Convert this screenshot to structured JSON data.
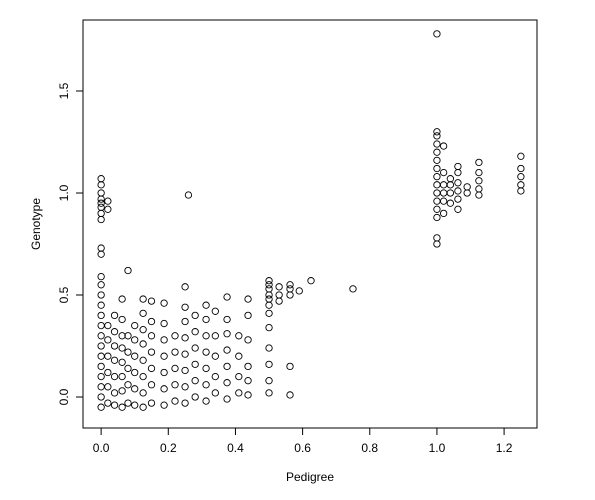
{
  "chart_data": {
    "type": "scatter",
    "x_label": "Pedigree",
    "y_label": "Genotype",
    "xlim": [
      -0.054,
      1.298
    ],
    "ylim": [
      -0.152,
      1.848
    ],
    "xticks": [
      {
        "value": 0,
        "label": "0.0"
      },
      {
        "value": 0.2,
        "label": "0.2"
      },
      {
        "value": 0.4,
        "label": "0.4"
      },
      {
        "value": 0.6,
        "label": "0.6"
      },
      {
        "value": 0.8,
        "label": "0.8"
      },
      {
        "value": 1,
        "label": "1.0"
      },
      {
        "value": 1.2,
        "label": "1.2"
      }
    ],
    "yticks": [
      {
        "value": 0,
        "label": "0.0"
      },
      {
        "value": 0.5,
        "label": "0.5"
      },
      {
        "value": 1,
        "label": "1.0"
      },
      {
        "value": 1.5,
        "label": "1.5"
      }
    ],
    "color": "#000000",
    "x": [
      0,
      0,
      0,
      0,
      0,
      0,
      0,
      0,
      0,
      0,
      0,
      0,
      0,
      0,
      0,
      0,
      0,
      0,
      0,
      0,
      0,
      0,
      0,
      0,
      0.02,
      0.02,
      0.02,
      0.02,
      0.02,
      0.02,
      0.02,
      0.02,
      0.04,
      0.04,
      0.04,
      0.04,
      0.04,
      0.04,
      0.04,
      0.0625,
      0.0625,
      0.0625,
      0.0625,
      0.0625,
      0.0625,
      0.0625,
      0.0625,
      0.08,
      0.08,
      0.08,
      0.08,
      0.08,
      0.08,
      0.1,
      0.1,
      0.1,
      0.1,
      0.1,
      0.1,
      0.125,
      0.125,
      0.125,
      0.125,
      0.125,
      0.125,
      0.125,
      0.125,
      0.15,
      0.15,
      0.15,
      0.15,
      0.15,
      0.15,
      0.15,
      0.1875,
      0.1875,
      0.1875,
      0.1875,
      0.1875,
      0.1875,
      0.1875,
      0.22,
      0.22,
      0.22,
      0.22,
      0.22,
      0.25,
      0.25,
      0.25,
      0.25,
      0.25,
      0.25,
      0.25,
      0.25,
      0.26,
      0.28,
      0.28,
      0.28,
      0.28,
      0.28,
      0.28,
      0.3125,
      0.3125,
      0.3125,
      0.3125,
      0.3125,
      0.3125,
      0.3125,
      0.34,
      0.34,
      0.34,
      0.34,
      0.34,
      0.375,
      0.375,
      0.375,
      0.375,
      0.375,
      0.375,
      0.375,
      0.41,
      0.41,
      0.41,
      0.41,
      0.4375,
      0.4375,
      0.4375,
      0.4375,
      0.4375,
      0.4375,
      0.5,
      0.5,
      0.5,
      0.5,
      0.5,
      0.5,
      0.5,
      0.5,
      0.5,
      0.5,
      0.5,
      0.5,
      0.53,
      0.53,
      0.53,
      0.5625,
      0.5625,
      0.5625,
      0.5625,
      0.5625,
      0.59,
      0.625,
      0.75,
      1,
      1,
      1,
      1,
      1,
      1,
      1,
      1,
      1,
      1,
      1,
      1,
      1,
      1,
      1,
      1.02,
      1.02,
      1.02,
      1.02,
      1.02,
      1.02,
      1.04,
      1.04,
      1.04,
      1.04,
      1.0625,
      1.0625,
      1.0625,
      1.0625,
      1.0625,
      1.0625,
      1.09,
      1.09,
      1.125,
      1.125,
      1.125,
      1.125,
      1.125,
      1.25,
      1.25,
      1.25,
      1.25,
      1.25
    ],
    "values": [
      -0.05,
      0,
      0.05,
      0.1,
      0.15,
      0.2,
      0.25,
      0.3,
      0.35,
      0.4,
      0.45,
      0.5,
      0.55,
      0.59,
      0.7,
      0.73,
      0.87,
      0.9,
      0.93,
      0.95,
      0.97,
      1.0,
      1.04,
      1.07,
      -0.03,
      0.05,
      0.12,
      0.2,
      0.28,
      0.35,
      0.92,
      0.96,
      -0.04,
      0.02,
      0.1,
      0.18,
      0.25,
      0.32,
      0.4,
      -0.05,
      0.03,
      0.1,
      0.17,
      0.24,
      0.3,
      0.38,
      0.48,
      -0.03,
      0.06,
      0.14,
      0.22,
      0.3,
      0.62,
      -0.04,
      0.04,
      0.12,
      0.2,
      0.28,
      0.35,
      -0.05,
      0.02,
      0.1,
      0.18,
      0.26,
      0.33,
      0.41,
      0.48,
      -0.03,
      0.06,
      0.14,
      0.22,
      0.3,
      0.37,
      0.47,
      -0.04,
      0.04,
      0.12,
      0.2,
      0.28,
      0.36,
      0.46,
      -0.02,
      0.06,
      0.14,
      0.22,
      0.3,
      -0.03,
      0.05,
      0.13,
      0.21,
      0.29,
      0.37,
      0.44,
      0.54,
      0.99,
      0,
      0.08,
      0.16,
      0.24,
      0.32,
      0.4,
      -0.02,
      0.06,
      0.14,
      0.22,
      0.3,
      0.38,
      0.45,
      0.02,
      0.1,
      0.2,
      0.3,
      0.42,
      -0.01,
      0.07,
      0.15,
      0.23,
      0.31,
      0.38,
      0.49,
      0.02,
      0.1,
      0.2,
      0.3,
      0.01,
      0.08,
      0.15,
      0.28,
      0.4,
      0.48,
      0.02,
      0.08,
      0.16,
      0.24,
      0.34,
      0.41,
      0.45,
      0.48,
      0.5,
      0.53,
      0.55,
      0.57,
      0.47,
      0.5,
      0.54,
      0.01,
      0.15,
      0.5,
      0.53,
      0.55,
      0.52,
      0.57,
      0.53,
      0.75,
      0.78,
      0.88,
      0.92,
      0.96,
      1.0,
      1.04,
      1.08,
      1.12,
      1.16,
      1.2,
      1.24,
      1.28,
      1.3,
      1.78,
      0.9,
      0.96,
      1.0,
      1.04,
      1.1,
      1.23,
      0.95,
      1.0,
      1.04,
      1.07,
      0.92,
      0.97,
      1.01,
      1.05,
      1.1,
      1.13,
      1.0,
      1.03,
      0.99,
      1.02,
      1.06,
      1.1,
      1.15,
      1.01,
      1.04,
      1.08,
      1.12,
      1.18
    ]
  }
}
